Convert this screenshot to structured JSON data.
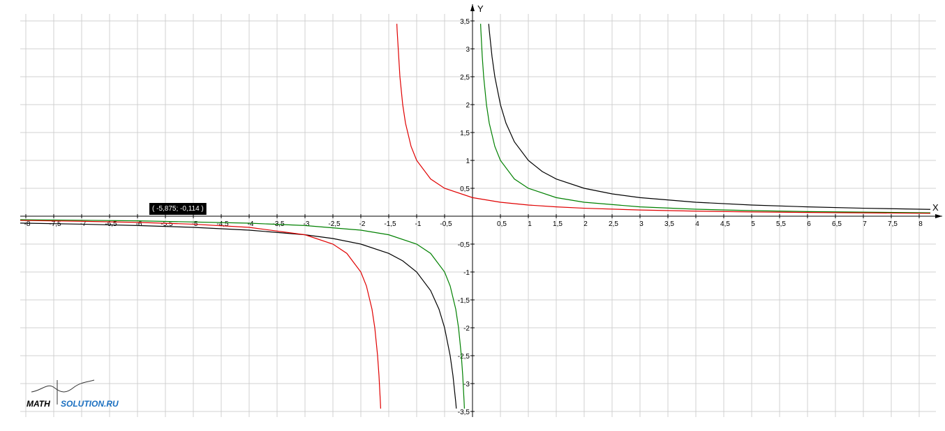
{
  "chart_data": {
    "type": "line",
    "xlabel": "X",
    "ylabel": "Y",
    "annotation": "( -5,875; -0,114 )",
    "xlim": [
      -8.1,
      8.3
    ],
    "ylim": [
      -3.6,
      3.6
    ],
    "grid": true,
    "xticks": [
      -8,
      {
        "value": -7.5,
        "label": "-7,5"
      },
      -7,
      {
        "value": -6.5,
        "label": "-6,5"
      },
      -6,
      {
        "value": -5.5,
        "label": "-5,5"
      },
      -5,
      {
        "value": -4.5,
        "label": "-4,5"
      },
      -4,
      {
        "value": -3.5,
        "label": "-3,5"
      },
      -3,
      {
        "value": -2.5,
        "label": "-2,5"
      },
      -2,
      {
        "value": -1.5,
        "label": "-1,5"
      },
      -1,
      {
        "value": -0.5,
        "label": "-0,5"
      },
      {
        "value": 0.5,
        "label": "0,5"
      },
      1,
      {
        "value": 1.5,
        "label": "1,5"
      },
      2,
      {
        "value": 2.5,
        "label": "2,5"
      },
      3,
      {
        "value": 3.5,
        "label": "3,5"
      },
      4,
      {
        "value": 4.5,
        "label": "4,5"
      },
      5,
      {
        "value": 5.5,
        "label": "5,5"
      },
      6,
      {
        "value": 6.5,
        "label": "6,5"
      },
      7,
      {
        "value": 7.5,
        "label": "7,5"
      },
      8
    ],
    "yticks": [
      {
        "value": -3.5,
        "label": "-3,5"
      },
      -3,
      {
        "value": -2.5,
        "label": "-2,5"
      },
      -2,
      {
        "value": -1.5,
        "label": "-1,5"
      },
      -1,
      {
        "value": -0.5,
        "label": "-0,5"
      },
      {
        "value": 0.5,
        "label": "0,5"
      },
      1,
      {
        "value": 1.5,
        "label": "1,5"
      },
      2,
      {
        "value": 2.5,
        "label": "2,5"
      },
      3,
      {
        "value": 3.5,
        "label": "3,5"
      }
    ],
    "series": [
      {
        "color": "#000000",
        "x": [
          -8.1,
          -7,
          -6,
          -5,
          -4,
          -3,
          -2.5,
          -2,
          -1.5,
          -1.25,
          -1,
          -0.75,
          -0.6,
          -0.5,
          -0.4,
          -0.35,
          -0.3,
          -0.29,
          0,
          0.29,
          0.3,
          0.35,
          0.4,
          0.5,
          0.6,
          0.75,
          1,
          1.25,
          1.5,
          2,
          2.5,
          3,
          4,
          5,
          6,
          7,
          8.2
        ],
        "values": [
          -0.123,
          -0.143,
          -0.167,
          -0.2,
          -0.25,
          -0.333,
          -0.4,
          -0.5,
          -0.667,
          -0.8,
          -1,
          -1.333,
          -1.667,
          -2,
          -2.5,
          -2.857,
          -3.333,
          -3.448,
          null,
          3.448,
          3.333,
          2.857,
          2.5,
          2,
          1.667,
          1.333,
          1,
          0.8,
          0.667,
          0.5,
          0.4,
          0.333,
          0.25,
          0.2,
          0.167,
          0.143,
          0.122
        ]
      },
      {
        "color": "#008000",
        "x": [
          -8.1,
          -6,
          -4,
          -3,
          -2,
          -1.5,
          -1,
          -0.75,
          -0.5,
          -0.4,
          -0.3,
          -0.25,
          -0.2,
          -0.175,
          -0.15,
          -0.145,
          0,
          0.145,
          0.15,
          0.175,
          0.2,
          0.25,
          0.3,
          0.4,
          0.5,
          0.75,
          1,
          1.5,
          2,
          3,
          4,
          5,
          6,
          8.2
        ],
        "values": [
          -0.062,
          -0.083,
          -0.125,
          -0.167,
          -0.25,
          -0.333,
          -0.5,
          -0.667,
          -1,
          -1.25,
          -1.667,
          -2,
          -2.5,
          -2.857,
          -3.333,
          -3.448,
          null,
          3.448,
          3.333,
          2.857,
          2.5,
          2,
          1.667,
          1.25,
          1,
          0.667,
          0.5,
          0.333,
          0.25,
          0.167,
          0.125,
          0.1,
          0.083,
          0.061
        ]
      },
      {
        "color": "#e00000",
        "x": [
          -8.1,
          -7,
          -6,
          -5,
          -4,
          -3,
          -2.5,
          -2.25,
          -2,
          -1.9,
          -1.8,
          -1.75,
          -1.7,
          -1.675,
          -1.65,
          -1.645,
          -1.5,
          -1.355,
          -1.35,
          -1.3,
          -1.25,
          -1.2,
          -1.1,
          -1,
          -0.75,
          -0.5,
          0,
          0.5,
          1,
          1.5,
          2,
          3,
          4,
          5,
          6,
          8.2
        ],
        "values": [
          -0.076,
          -0.091,
          -0.111,
          -0.143,
          -0.2,
          -0.333,
          -0.5,
          -0.667,
          -1,
          -1.25,
          -1.667,
          -2,
          -2.5,
          -2.857,
          -3.333,
          -3.448,
          null,
          3.448,
          3.333,
          2.5,
          2,
          1.667,
          1.25,
          1,
          0.667,
          0.5,
          0.333,
          0.25,
          0.2,
          0.167,
          0.143,
          0.111,
          0.091,
          0.077,
          0.067,
          0.051
        ]
      }
    ]
  },
  "logo": {
    "left": "MATH",
    "right": "SOLUTION.RU"
  }
}
